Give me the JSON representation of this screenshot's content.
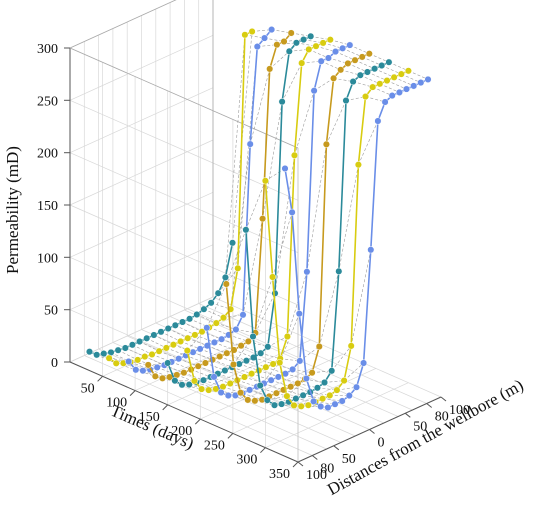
{
  "chart_data": {
    "type": "line",
    "projection": "3d",
    "z_axis": {
      "label": "Permeability (mD)",
      "range": [
        0,
        300
      ],
      "ticks": [
        0,
        50,
        100,
        150,
        200,
        250,
        300
      ]
    },
    "time_axis": {
      "label": "Times (days)",
      "range": [
        0,
        350
      ],
      "ticks": [
        50,
        100,
        150,
        200,
        250,
        300,
        350
      ]
    },
    "distance_axis": {
      "label": "Distances from the wellbore (m)",
      "range": [
        -100,
        100
      ],
      "ticks": [
        100,
        80,
        50,
        0,
        50,
        80,
        100
      ]
    },
    "grid": true,
    "colors": [
      "#2b8a9a",
      "#d8cc10",
      "#6a8ee8",
      "#c79a1e"
    ],
    "distances": [
      -100,
      -90,
      -80,
      -70,
      -60,
      -50,
      -40,
      -30,
      -20,
      -10,
      0,
      10,
      20,
      30,
      40,
      50,
      60,
      70,
      80,
      90,
      100
    ],
    "series": [
      {
        "time": 30,
        "values": [
          18,
          12,
          10,
          8,
          7,
          6,
          6,
          6,
          6,
          6,
          6,
          6,
          6,
          6,
          6,
          7,
          9,
          12,
          18,
          30,
          60
        ]
      },
      {
        "time": 60,
        "values": [
          20,
          12,
          9,
          7,
          6,
          6,
          5,
          5,
          5,
          5,
          5,
          5,
          5,
          5,
          6,
          7,
          9,
          14,
          50,
          270,
          270
        ]
      },
      {
        "time": 90,
        "values": [
          25,
          14,
          10,
          8,
          7,
          6,
          6,
          6,
          6,
          6,
          6,
          6,
          6,
          6,
          7,
          9,
          20,
          180,
          270,
          275,
          280
        ]
      },
      {
        "time": 120,
        "values": [
          30,
          16,
          11,
          9,
          8,
          7,
          7,
          7,
          7,
          7,
          7,
          7,
          7,
          8,
          9,
          14,
          120,
          260,
          280,
          280,
          285
        ]
      },
      {
        "time": 150,
        "values": [
          40,
          20,
          13,
          10,
          9,
          8,
          8,
          8,
          8,
          8,
          8,
          8,
          8,
          9,
          12,
          60,
          240,
          285,
          290,
          290,
          290
        ]
      },
      {
        "time": 180,
        "values": [
          60,
          28,
          17,
          13,
          11,
          10,
          10,
          10,
          10,
          10,
          10,
          10,
          10,
          12,
          30,
          200,
          285,
          295,
          295,
          295,
          295
        ]
      },
      {
        "time": 210,
        "values": [
          90,
          40,
          22,
          16,
          13,
          12,
          12,
          12,
          12,
          12,
          12,
          12,
          13,
          18,
          100,
          270,
          295,
          295,
          298,
          298,
          298
        ]
      },
      {
        "time": 240,
        "values": [
          140,
          60,
          30,
          20,
          16,
          14,
          14,
          14,
          14,
          14,
          14,
          15,
          18,
          40,
          230,
          290,
          295,
          298,
          298,
          298,
          298
        ]
      },
      {
        "time": 270,
        "values": [
          200,
          95,
          45,
          28,
          20,
          18,
          17,
          17,
          17,
          17,
          18,
          20,
          28,
          120,
          280,
          295,
          298,
          298,
          298,
          298,
          298
        ]
      },
      {
        "time": 300,
        "values": [
          255,
          160,
          75,
          40,
          28,
          24,
          22,
          22,
          22,
          22,
          24,
          30,
          60,
          230,
          292,
          298,
          298,
          298,
          298,
          298,
          298
        ]
      },
      {
        "time": 330,
        "values": [
          275,
          230,
          130,
          65,
          40,
          32,
          28,
          28,
          28,
          30,
          35,
          55,
          160,
          280,
          295,
          298,
          298,
          298,
          298,
          298,
          298
        ]
      }
    ]
  }
}
